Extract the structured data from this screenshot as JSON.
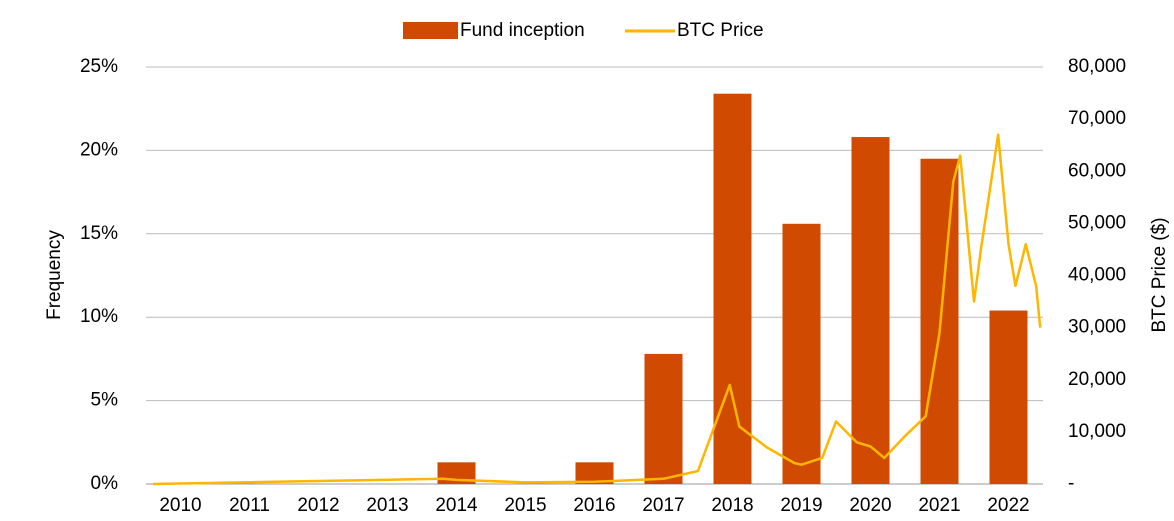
{
  "chart_data": {
    "type": "bar",
    "categories": [
      "2010",
      "2011",
      "2012",
      "2013",
      "2014",
      "2015",
      "2016",
      "2017",
      "2018",
      "2019",
      "2020",
      "2021",
      "2022"
    ],
    "series": [
      {
        "name": "Fund inception",
        "color": "#d04a02",
        "type": "bar",
        "values": [
          0,
          0,
          0,
          0,
          1.3,
          0,
          1.3,
          7.8,
          23.4,
          15.6,
          20.8,
          19.5,
          10.4
        ]
      },
      {
        "name": "BTC Price",
        "color": "#ffb600",
        "type": "line",
        "axis": "y2",
        "x": [
          2009.6,
          2013.8,
          2014.0,
          2015.0,
          2016.0,
          2017.0,
          2017.5,
          2017.96,
          2018.1,
          2018.5,
          2018.9,
          2019.0,
          2019.3,
          2019.5,
          2019.8,
          2020.0,
          2020.2,
          2020.5,
          2020.8,
          2021.0,
          2021.2,
          2021.3,
          2021.5,
          2021.6,
          2021.85,
          2022.0,
          2022.1,
          2022.25,
          2022.4,
          2022.46
        ],
        "values": [
          0,
          1000,
          800,
          300,
          430,
          1000,
          2500,
          19000,
          11000,
          7000,
          4000,
          3700,
          5000,
          12000,
          8000,
          7200,
          5000,
          9200,
          13000,
          29000,
          58000,
          63000,
          35000,
          45000,
          67000,
          46000,
          38000,
          46000,
          38000,
          30000
        ]
      }
    ],
    "ylabel": "Frequency",
    "y2label": "BTC Price ($)",
    "ylim": [
      0,
      25
    ],
    "yticks": [
      {
        "value": 0,
        "label": "0%"
      },
      {
        "value": 5,
        "label": "5%"
      },
      {
        "value": 10,
        "label": "10%"
      },
      {
        "value": 15,
        "label": "15%"
      },
      {
        "value": 20,
        "label": "20%"
      },
      {
        "value": 25,
        "label": "25%"
      }
    ],
    "y2lim": [
      0,
      80000
    ],
    "y2ticks": [
      {
        "value": 0,
        "label": "-"
      },
      {
        "value": 10000,
        "label": "10,000"
      },
      {
        "value": 20000,
        "label": "20,000"
      },
      {
        "value": 30000,
        "label": "30,000"
      },
      {
        "value": 40000,
        "label": "40,000"
      },
      {
        "value": 50000,
        "label": "50,000"
      },
      {
        "value": 60000,
        "label": "60,000"
      },
      {
        "value": 70000,
        "label": "70,000"
      },
      {
        "value": 80000,
        "label": "80,000"
      }
    ],
    "grid": true,
    "legend": "top"
  }
}
